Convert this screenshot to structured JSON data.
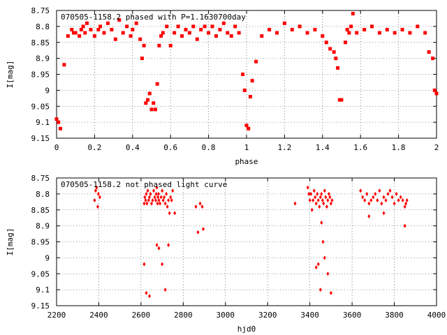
{
  "chart_data": [
    {
      "type": "scatter",
      "title": "070505-1158.2 phased with P=1.1630700day",
      "xlabel": "phase",
      "ylabel": "I[mag]",
      "xlim": [
        0,
        2
      ],
      "ylim": [
        9.15,
        8.75
      ],
      "y_inverted": true,
      "grid": true,
      "marker": "square",
      "color": "#ff0000",
      "xticks": [
        "0",
        "0.2",
        "0.4",
        "0.6",
        "0.8",
        "1",
        "1.2",
        "1.4",
        "1.6",
        "1.8",
        "2"
      ],
      "yticks": [
        "8.75",
        "8.8",
        "8.85",
        "8.9",
        "8.95",
        "9",
        "9.05",
        "9.1",
        "9.15"
      ],
      "x": [
        0.0,
        0.01,
        0.02,
        0.04,
        0.06,
        0.08,
        0.09,
        0.1,
        0.12,
        0.13,
        0.14,
        0.15,
        0.16,
        0.18,
        0.2,
        0.22,
        0.23,
        0.25,
        0.27,
        0.29,
        0.31,
        0.33,
        0.35,
        0.37,
        0.39,
        0.4,
        0.42,
        0.44,
        0.45,
        0.46,
        0.47,
        0.48,
        0.49,
        0.5,
        0.51,
        0.52,
        0.53,
        0.54,
        0.55,
        0.56,
        0.58,
        0.6,
        0.62,
        0.64,
        0.66,
        0.68,
        0.7,
        0.72,
        0.74,
        0.76,
        0.78,
        0.8,
        0.82,
        0.84,
        0.86,
        0.88,
        0.9,
        0.92,
        0.94,
        0.96,
        0.98,
        0.99,
        1.0,
        1.01,
        1.02,
        1.03,
        1.05,
        1.08,
        1.12,
        1.16,
        1.2,
        1.24,
        1.28,
        1.32,
        1.36,
        1.4,
        1.42,
        1.44,
        1.46,
        1.47,
        1.48,
        1.49,
        1.5,
        1.52,
        1.53,
        1.54,
        1.55,
        1.56,
        1.58,
        1.62,
        1.66,
        1.7,
        1.74,
        1.78,
        1.82,
        1.86,
        1.9,
        1.94,
        1.96,
        1.98,
        1.99,
        2.0
      ],
      "y": [
        9.09,
        9.1,
        9.12,
        8.92,
        8.83,
        8.81,
        8.82,
        8.82,
        8.83,
        8.81,
        8.8,
        8.82,
        8.79,
        8.81,
        8.83,
        8.81,
        8.8,
        8.82,
        8.79,
        8.81,
        8.84,
        8.78,
        8.82,
        8.8,
        8.83,
        8.81,
        8.79,
        8.84,
        8.9,
        8.86,
        9.04,
        9.03,
        9.01,
        9.06,
        9.04,
        9.06,
        8.98,
        8.86,
        8.83,
        8.82,
        8.8,
        8.86,
        8.82,
        8.8,
        8.83,
        8.81,
        8.82,
        8.8,
        8.84,
        8.81,
        8.8,
        8.82,
        8.8,
        8.83,
        8.81,
        8.79,
        8.82,
        8.83,
        8.8,
        8.82,
        8.95,
        9.0,
        9.11,
        9.12,
        9.02,
        8.97,
        8.91,
        8.83,
        8.81,
        8.82,
        8.79,
        8.81,
        8.8,
        8.82,
        8.81,
        8.83,
        8.85,
        8.87,
        8.88,
        8.9,
        8.93,
        9.03,
        9.03,
        8.85,
        8.81,
        8.82,
        8.8,
        8.76,
        8.82,
        8.81,
        8.8,
        8.82,
        8.81,
        8.82,
        8.81,
        8.82,
        8.8,
        8.82,
        8.88,
        8.9,
        9.0,
        9.01
      ]
    },
    {
      "type": "scatter",
      "title": "070505-1158.2 not phased light curve",
      "xlabel": "hjd0",
      "ylabel": "I[mag]",
      "xlim": [
        2200,
        4000
      ],
      "ylim": [
        9.15,
        8.75
      ],
      "y_inverted": true,
      "grid": true,
      "marker": "diamond",
      "color": "#ff0000",
      "xticks": [
        "2200",
        "2400",
        "2600",
        "2800",
        "3000",
        "3200",
        "3400",
        "3600",
        "3800",
        "4000"
      ],
      "yticks": [
        "8.75",
        "8.8",
        "8.85",
        "8.9",
        "8.95",
        "9",
        "9.05",
        "9.1",
        "9.15"
      ],
      "x": [
        2380,
        2385,
        2390,
        2395,
        2398,
        2405,
        2615,
        2618,
        2622,
        2625,
        2628,
        2632,
        2636,
        2640,
        2645,
        2650,
        2655,
        2660,
        2665,
        2670,
        2672,
        2675,
        2678,
        2680,
        2683,
        2685,
        2690,
        2695,
        2700,
        2705,
        2710,
        2715,
        2720,
        2725,
        2730,
        2735,
        2740,
        2745,
        2750,
        2760,
        2615,
        2625,
        2640,
        2675,
        2685,
        2700,
        2715,
        2730,
        2860,
        2870,
        2880,
        2890,
        2895,
        3330,
        3390,
        3395,
        3400,
        3405,
        3410,
        3415,
        3420,
        3425,
        3430,
        3435,
        3440,
        3445,
        3450,
        3455,
        3460,
        3465,
        3470,
        3475,
        3480,
        3485,
        3490,
        3495,
        3500,
        3505,
        3455,
        3462,
        3470,
        3485,
        3500,
        3430,
        3440,
        3450,
        3640,
        3650,
        3660,
        3670,
        3680,
        3690,
        3700,
        3710,
        3720,
        3730,
        3740,
        3750,
        3760,
        3770,
        3780,
        3790,
        3800,
        3810,
        3820,
        3830,
        3840,
        3850,
        3860,
        3680,
        3750,
        3850,
        3855
      ],
      "y": [
        8.82,
        8.79,
        8.78,
        8.84,
        8.8,
        8.81,
        8.83,
        8.81,
        8.82,
        8.8,
        8.83,
        8.79,
        8.82,
        8.81,
        8.8,
        8.83,
        8.82,
        8.79,
        8.81,
        8.82,
        8.8,
        8.78,
        8.83,
        8.81,
        8.8,
        8.82,
        8.83,
        8.81,
        8.79,
        8.82,
        8.81,
        8.83,
        8.8,
        8.84,
        8.82,
        8.86,
        8.81,
        8.82,
        8.79,
        8.86,
        9.02,
        9.11,
        9.12,
        8.96,
        8.97,
        9.02,
        9.1,
        8.96,
        8.84,
        8.92,
        8.83,
        8.84,
        8.91,
        8.83,
        8.78,
        8.8,
        8.82,
        8.8,
        8.85,
        8.82,
        8.79,
        8.81,
        8.83,
        8.8,
        8.82,
        8.84,
        8.81,
        8.8,
        8.82,
        8.83,
        8.79,
        8.81,
        8.84,
        8.82,
        8.8,
        8.81,
        8.83,
        8.82,
        8.89,
        8.95,
        9.0,
        9.05,
        9.11,
        9.03,
        9.02,
        9.1,
        8.79,
        8.81,
        8.82,
        8.8,
        8.83,
        8.82,
        8.81,
        8.8,
        8.82,
        8.79,
        8.83,
        8.81,
        8.82,
        8.8,
        8.79,
        8.81,
        8.83,
        8.8,
        8.82,
        8.81,
        8.82,
        8.84,
        8.82,
        8.87,
        8.86,
        8.9,
        8.83
      ]
    }
  ]
}
